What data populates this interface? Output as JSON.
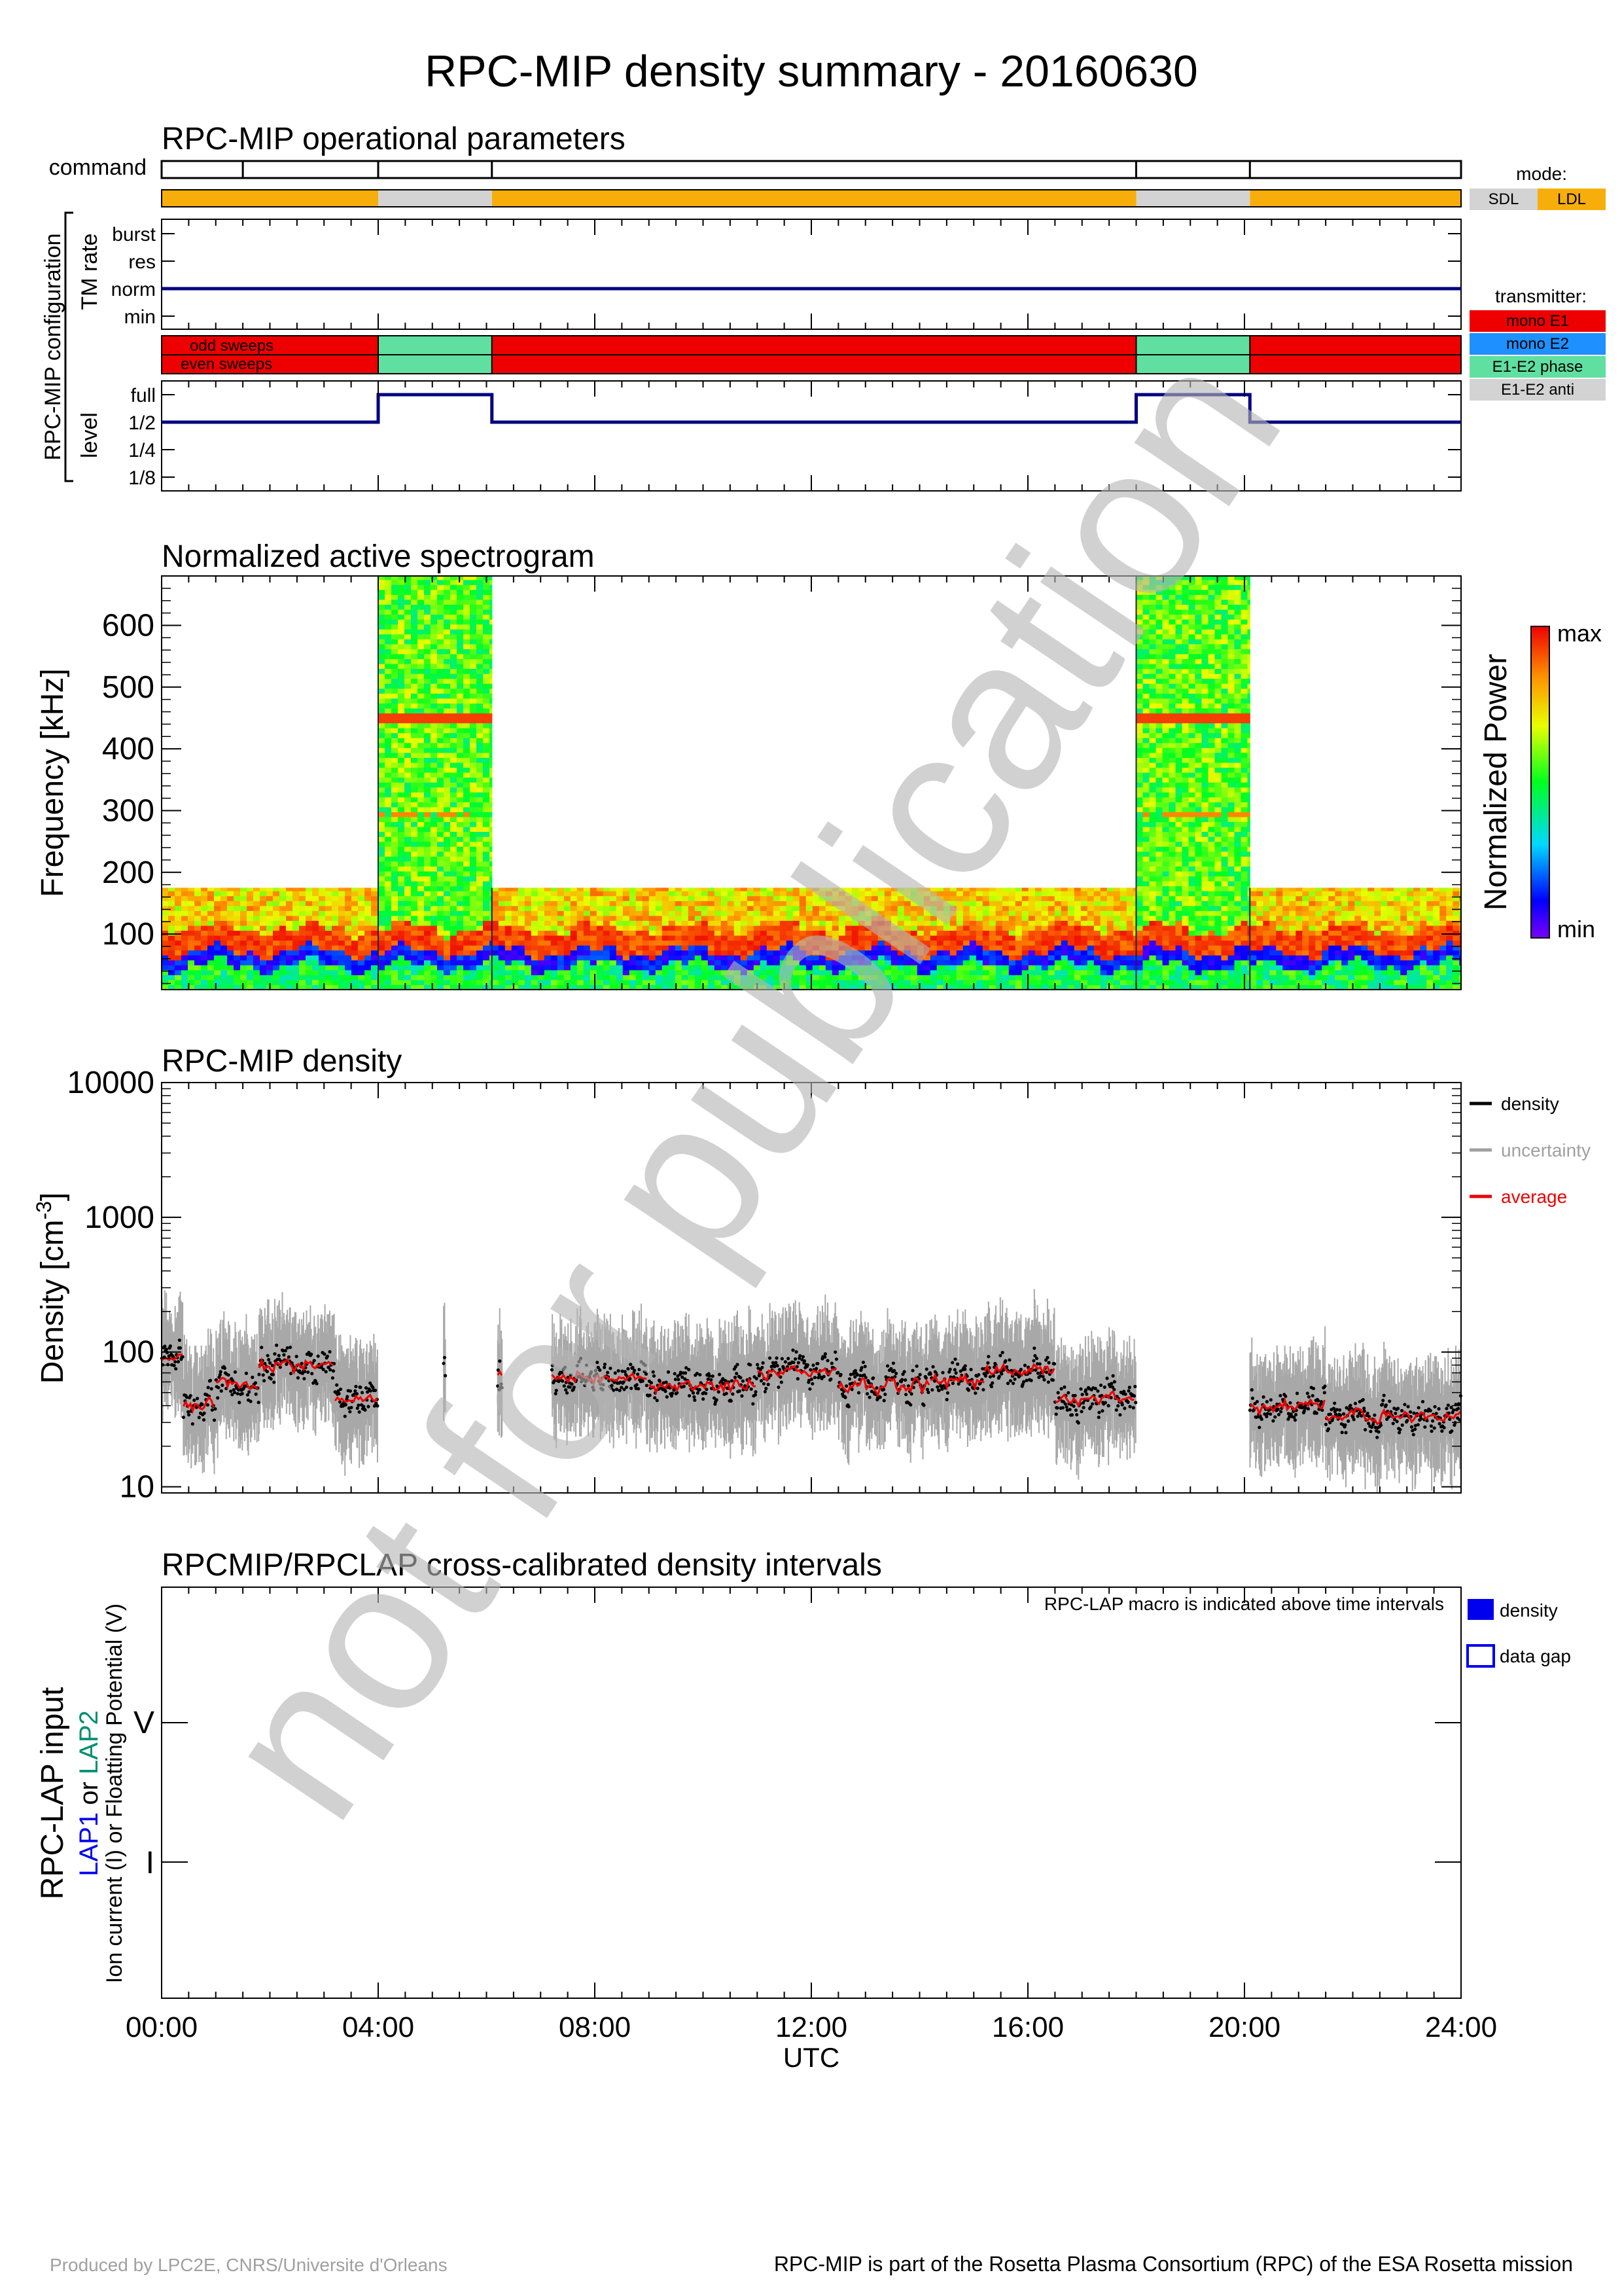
{
  "title": "RPC-MIP density summary - 20160630",
  "op": {
    "title": "RPC-MIP operational parameters",
    "command_label": "command",
    "config_label": "RPC-MIP configuration",
    "tm_label": "TM rate",
    "tm_levels": [
      "burst",
      "res",
      "norm",
      "min"
    ],
    "level_label": "level",
    "levels": [
      "full",
      "1/2",
      "1/4",
      "1/8"
    ],
    "odd_label": "odd sweeps",
    "even_label": "even sweeps",
    "command_ticks_h": [
      0,
      1.5,
      4,
      6.1,
      18,
      20.1,
      24
    ],
    "mode_segments": [
      {
        "start": 0,
        "end": 4,
        "mode": "LDL"
      },
      {
        "start": 4,
        "end": 6.1,
        "mode": "SDL"
      },
      {
        "start": 6.1,
        "end": 18,
        "mode": "LDL"
      },
      {
        "start": 18,
        "end": 20.1,
        "mode": "SDL"
      },
      {
        "start": 20.1,
        "end": 24,
        "mode": "LDL"
      }
    ],
    "tm_value": "norm",
    "transmitter_segments": [
      {
        "start": 0,
        "end": 4,
        "tx": "mono E1"
      },
      {
        "start": 4,
        "end": 6.1,
        "tx": "E1-E2 phase"
      },
      {
        "start": 6.1,
        "end": 18,
        "tx": "mono E1"
      },
      {
        "start": 18,
        "end": 20.1,
        "tx": "E1-E2 phase"
      },
      {
        "start": 20.1,
        "end": 24,
        "tx": "mono E1"
      }
    ],
    "level_segments": [
      {
        "start": 0,
        "end": 4,
        "level": "1/2"
      },
      {
        "start": 4,
        "end": 6.1,
        "level": "full"
      },
      {
        "start": 6.1,
        "end": 18,
        "level": "1/2"
      },
      {
        "start": 18,
        "end": 20.1,
        "level": "full"
      },
      {
        "start": 20.1,
        "end": 24,
        "level": "1/2"
      }
    ]
  },
  "mode_legend": {
    "title": "mode:",
    "items": [
      {
        "label": "SDL",
        "color": "#d3d3d3"
      },
      {
        "label": "LDL",
        "color": "#f7ae0a"
      }
    ]
  },
  "transmitter_legend": {
    "title": "transmitter:",
    "items": [
      {
        "label": "mono E1",
        "color": "#ee0000"
      },
      {
        "label": "mono E2",
        "color": "#1e90ff"
      },
      {
        "label": "E1-E2 phase",
        "color": "#5fe0a0"
      },
      {
        "label": "E1-E2 anti",
        "color": "#d3d3d3"
      }
    ]
  },
  "chart_data": [
    {
      "type": "heatmap",
      "title": "Normalized active spectrogram",
      "ylabel": "Frequency [kHz]",
      "ylim": [
        10,
        680
      ],
      "yticks": [
        "100",
        "200",
        "300",
        "400",
        "500",
        "600"
      ],
      "xlim": [
        0,
        24
      ],
      "colorbar_label": "Normalized Power",
      "colorbar_max": "max",
      "colorbar_min": "min",
      "coverage": [
        {
          "start": 0,
          "end": 4,
          "fmax": 175
        },
        {
          "start": 4,
          "end": 6.1,
          "fmax": 680
        },
        {
          "start": 6.1,
          "end": 18,
          "fmax": 175
        },
        {
          "start": 18,
          "end": 20.1,
          "fmax": 680
        },
        {
          "start": 20.1,
          "end": 24,
          "fmax": 175
        }
      ]
    },
    {
      "type": "scatter",
      "title": "RPC-MIP density",
      "ylabel": "Density [cm",
      "ylabel_sup": "-3",
      "ylabel_end": "]",
      "yscale": "log",
      "ylim": [
        9,
        10000
      ],
      "yticks": [
        "10",
        "100",
        "1000",
        "10000"
      ],
      "xlim": [
        0,
        24
      ],
      "legend": [
        {
          "label": "density",
          "color": "#000000"
        },
        {
          "label": "uncertainty",
          "color": "#a0a0a0"
        },
        {
          "label": "average",
          "color": "#ee0000"
        }
      ],
      "segments": [
        {
          "start": 0.0,
          "end": 0.4,
          "level": 90
        },
        {
          "start": 0.4,
          "end": 1.0,
          "level": 40
        },
        {
          "start": 1.0,
          "end": 1.8,
          "level": 60
        },
        {
          "start": 1.8,
          "end": 3.2,
          "level": 80
        },
        {
          "start": 3.2,
          "end": 4.0,
          "level": 45
        },
        {
          "start": 5.2,
          "end": 5.25,
          "level": 90
        },
        {
          "start": 6.2,
          "end": 6.3,
          "level": 70
        },
        {
          "start": 7.2,
          "end": 9.0,
          "level": 65
        },
        {
          "start": 9.0,
          "end": 11.0,
          "level": 55
        },
        {
          "start": 11.0,
          "end": 12.5,
          "level": 70
        },
        {
          "start": 12.5,
          "end": 14.2,
          "level": 55
        },
        {
          "start": 14.2,
          "end": 15.2,
          "level": 60
        },
        {
          "start": 15.2,
          "end": 16.5,
          "level": 75
        },
        {
          "start": 16.5,
          "end": 18.0,
          "level": 45
        },
        {
          "start": 20.1,
          "end": 21.5,
          "level": 40
        },
        {
          "start": 21.5,
          "end": 24.0,
          "level": 33
        }
      ]
    },
    {
      "type": "bar",
      "title": "RPCMIP/RPCLAP cross-calibrated density intervals",
      "ylabel": "RPC-LAP input",
      "ylabel2_a": "LAP1",
      "ylabel2_b": " or ",
      "ylabel2_c": "LAP2",
      "ylabel3": "Ion current (I) or Floatting Potential (V)",
      "yticks": [
        "V",
        "I"
      ],
      "note": "RPC-LAP macro is indicated above time intervals",
      "legend": [
        {
          "label": "density"
        },
        {
          "label": "data gap"
        }
      ],
      "xticks": [
        "00:00",
        "04:00",
        "08:00",
        "12:00",
        "16:00",
        "20:00",
        "24:00"
      ],
      "xlabel": "UTC",
      "intervals": []
    }
  ],
  "watermark": "not for publication",
  "footer_left": "Produced by LPC2E, CNRS/Universite d'Orleans",
  "footer_right": "RPC-MIP is part of the Rosetta Plasma Consortium (RPC) of the ESA Rosetta mission"
}
